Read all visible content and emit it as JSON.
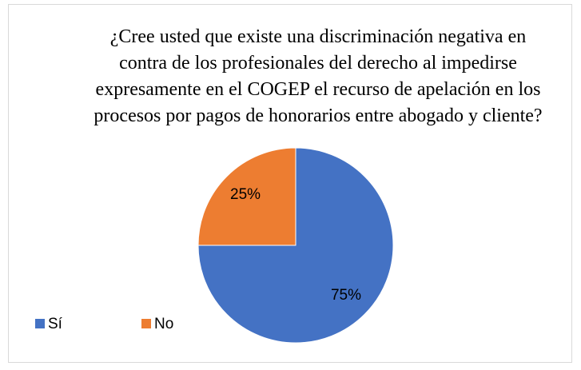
{
  "chart_data": {
    "type": "pie",
    "title": "¿Cree usted que existe una discriminación negativa en contra de los profesionales del derecho al impedirse expresamente en el COGEP el recurso de apelación en los procesos por pagos de honorarios entre abogado y cliente?",
    "categories": [
      "Sí",
      "No"
    ],
    "values": [
      75,
      25
    ],
    "value_labels": [
      "75%",
      "25%"
    ],
    "colors": [
      "#4472c4",
      "#ed7d31"
    ],
    "legend": "bottom-left"
  }
}
